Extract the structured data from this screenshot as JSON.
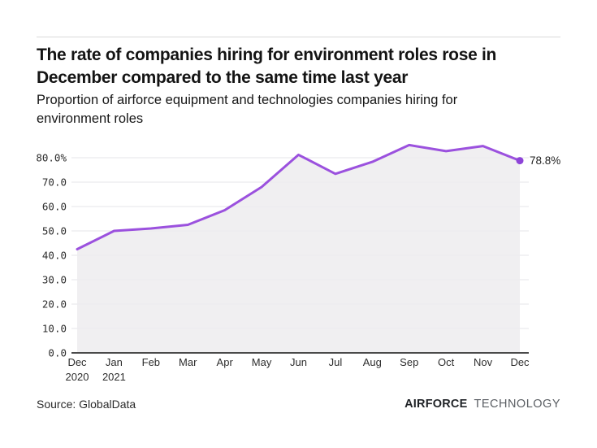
{
  "header": {
    "title": "The rate of companies hiring for environment roles rose in\nDecember compared to the same time last year",
    "subtitle": "Proportion of airforce equipment and technologies companies hiring for\nenvironment roles"
  },
  "chart_data": {
    "type": "area",
    "title": "The rate of companies hiring for environment roles rose in December compared to the same time last year",
    "subtitle": "Proportion of airforce equipment and technologies companies hiring for environment roles",
    "categories": [
      "Dec",
      "Jan",
      "Feb",
      "Mar",
      "Apr",
      "May",
      "Jun",
      "Jul",
      "Aug",
      "Sep",
      "Oct",
      "Nov",
      "Dec"
    ],
    "category_sublabels": [
      "2020",
      "2021",
      "",
      "",
      "",
      "",
      "",
      "",
      "",
      "",
      "",
      "",
      ""
    ],
    "values": [
      42.5,
      50.0,
      51.0,
      52.5,
      58.5,
      68.0,
      81.2,
      73.4,
      78.3,
      85.2,
      82.7,
      84.8,
      78.8
    ],
    "unit": "%",
    "xlabel": "",
    "ylabel": "",
    "ylim": [
      0,
      88
    ],
    "grid": true,
    "legend": false,
    "yticks": {
      "values": [
        0,
        10,
        20,
        30,
        40,
        50,
        60,
        70,
        80
      ],
      "labels": [
        "0.0",
        "10.0",
        "20.0",
        "30.0",
        "40.0",
        "50.0",
        "60.0",
        "70.0",
        "80.0%"
      ]
    },
    "annotation": {
      "text": "78.8%",
      "index": 12
    },
    "colors": {
      "line": "#9B51DE",
      "dot": "#8E44D8",
      "fill": "#EDECEF",
      "grid": "#E4E4E8",
      "axis": "#4A4A4A"
    }
  },
  "footer": {
    "source": "Source: GlobalData",
    "brand_bold": "AIRFORCE",
    "brand_light": "TECHNOLOGY"
  }
}
